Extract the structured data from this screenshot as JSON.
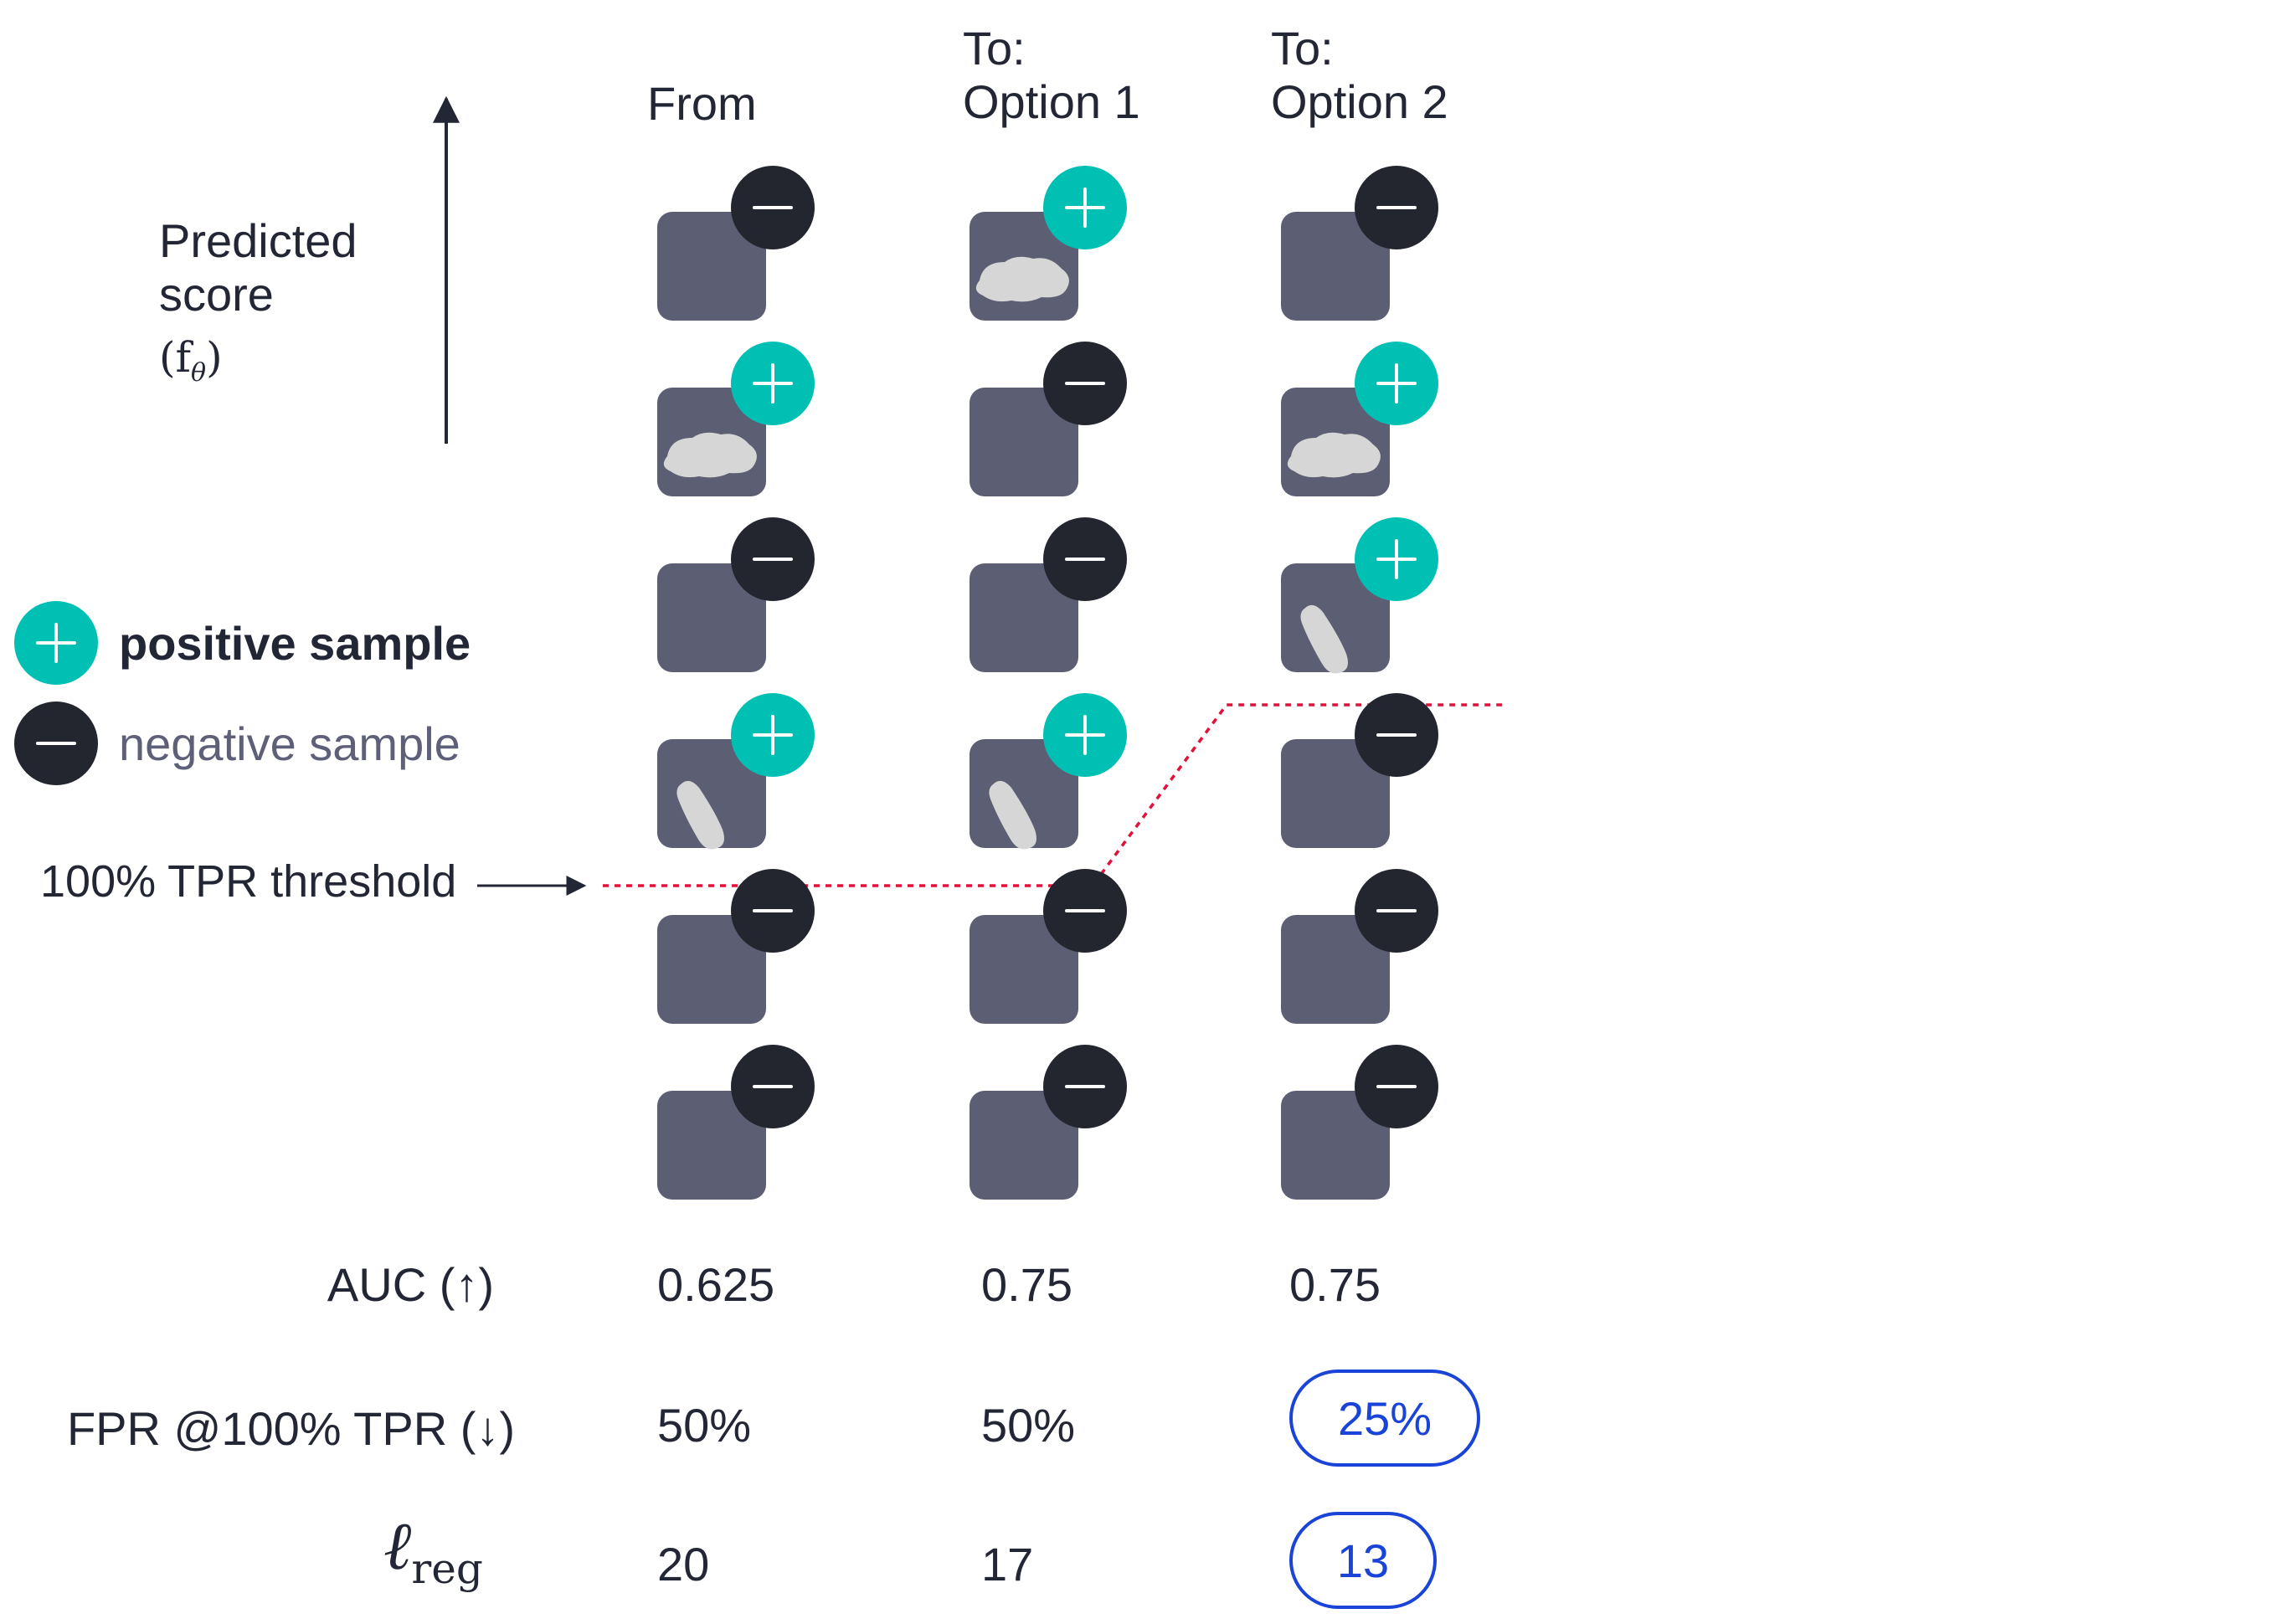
{
  "columns": [
    {
      "label_line1": "",
      "label_line2": "From"
    },
    {
      "label_line1": "To:",
      "label_line2": "Option 1"
    },
    {
      "label_line1": "To:",
      "label_line2": "Option 2"
    }
  ],
  "axis": {
    "label_line1": "Predicted",
    "label_line2": "score",
    "symbol": "(f",
    "symbol_sub": "θ",
    "symbol_close": ")"
  },
  "legend": {
    "positive": "positive sample",
    "negative": "negative sample"
  },
  "threshold_label": "100% TPR threshold",
  "samples": {
    "from": [
      "negative",
      "positive",
      "negative",
      "positive",
      "negative",
      "negative"
    ],
    "option1": [
      "positive",
      "negative",
      "negative",
      "positive",
      "negative",
      "negative"
    ],
    "option2": [
      "negative",
      "positive",
      "positive",
      "negative",
      "negative",
      "negative"
    ]
  },
  "metrics": {
    "auc": {
      "label": "AUC (↑)",
      "values": [
        "0.625",
        "0.75",
        "0.75"
      ]
    },
    "fpr": {
      "label": "FPR @100% TPR (↓)",
      "values": [
        "50%",
        "50%",
        "25%"
      ]
    },
    "lreg": {
      "symbol": "ℓ",
      "sub": "reg",
      "values": [
        "20",
        "17",
        "13"
      ]
    }
  },
  "colors": {
    "positive": "#00bfb3",
    "negative": "#23262f",
    "tile": "#5c5e74",
    "blob": "#d6d6d6",
    "threshold": "#e0123c",
    "highlight": "#1a44d8"
  }
}
